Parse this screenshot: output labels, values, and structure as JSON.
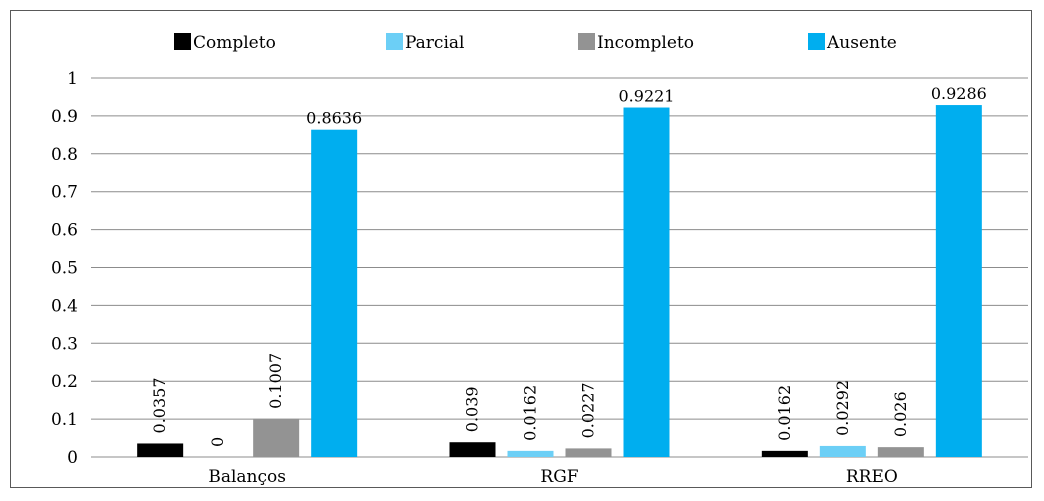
{
  "chart_data": {
    "type": "bar",
    "categories": [
      "Balanços",
      "RGF",
      "RREO"
    ],
    "series": [
      {
        "name": "Completo",
        "values": [
          0.0357,
          0.039,
          0.0162
        ],
        "labels": [
          "0.0357",
          "0.039",
          "0.0162"
        ],
        "color": "#000000"
      },
      {
        "name": "Parcial",
        "values": [
          0,
          0.0162,
          0.0292
        ],
        "labels": [
          "0",
          "0.0162",
          "0.0292"
        ],
        "color": "#6ccff6"
      },
      {
        "name": "Incompleto",
        "values": [
          0.1007,
          0.0227,
          0.026
        ],
        "labels": [
          "0.1007",
          "0.0227",
          "0.026"
        ],
        "color": "#939393"
      },
      {
        "name": "Ausente",
        "values": [
          0.8636,
          0.9221,
          0.9286
        ],
        "labels": [
          "0.8636",
          "0.9221",
          "0.9286"
        ],
        "color": "#00aeef"
      }
    ],
    "ylim": [
      0,
      1
    ],
    "yticks": [
      "0",
      "0.1",
      "0.2",
      "0.3",
      "0.4",
      "0.5",
      "0.6",
      "0.7",
      "0.8",
      "0.9",
      "1"
    ],
    "grid": true,
    "legend_position": "top",
    "title": "",
    "xlabel": "",
    "ylabel": ""
  }
}
